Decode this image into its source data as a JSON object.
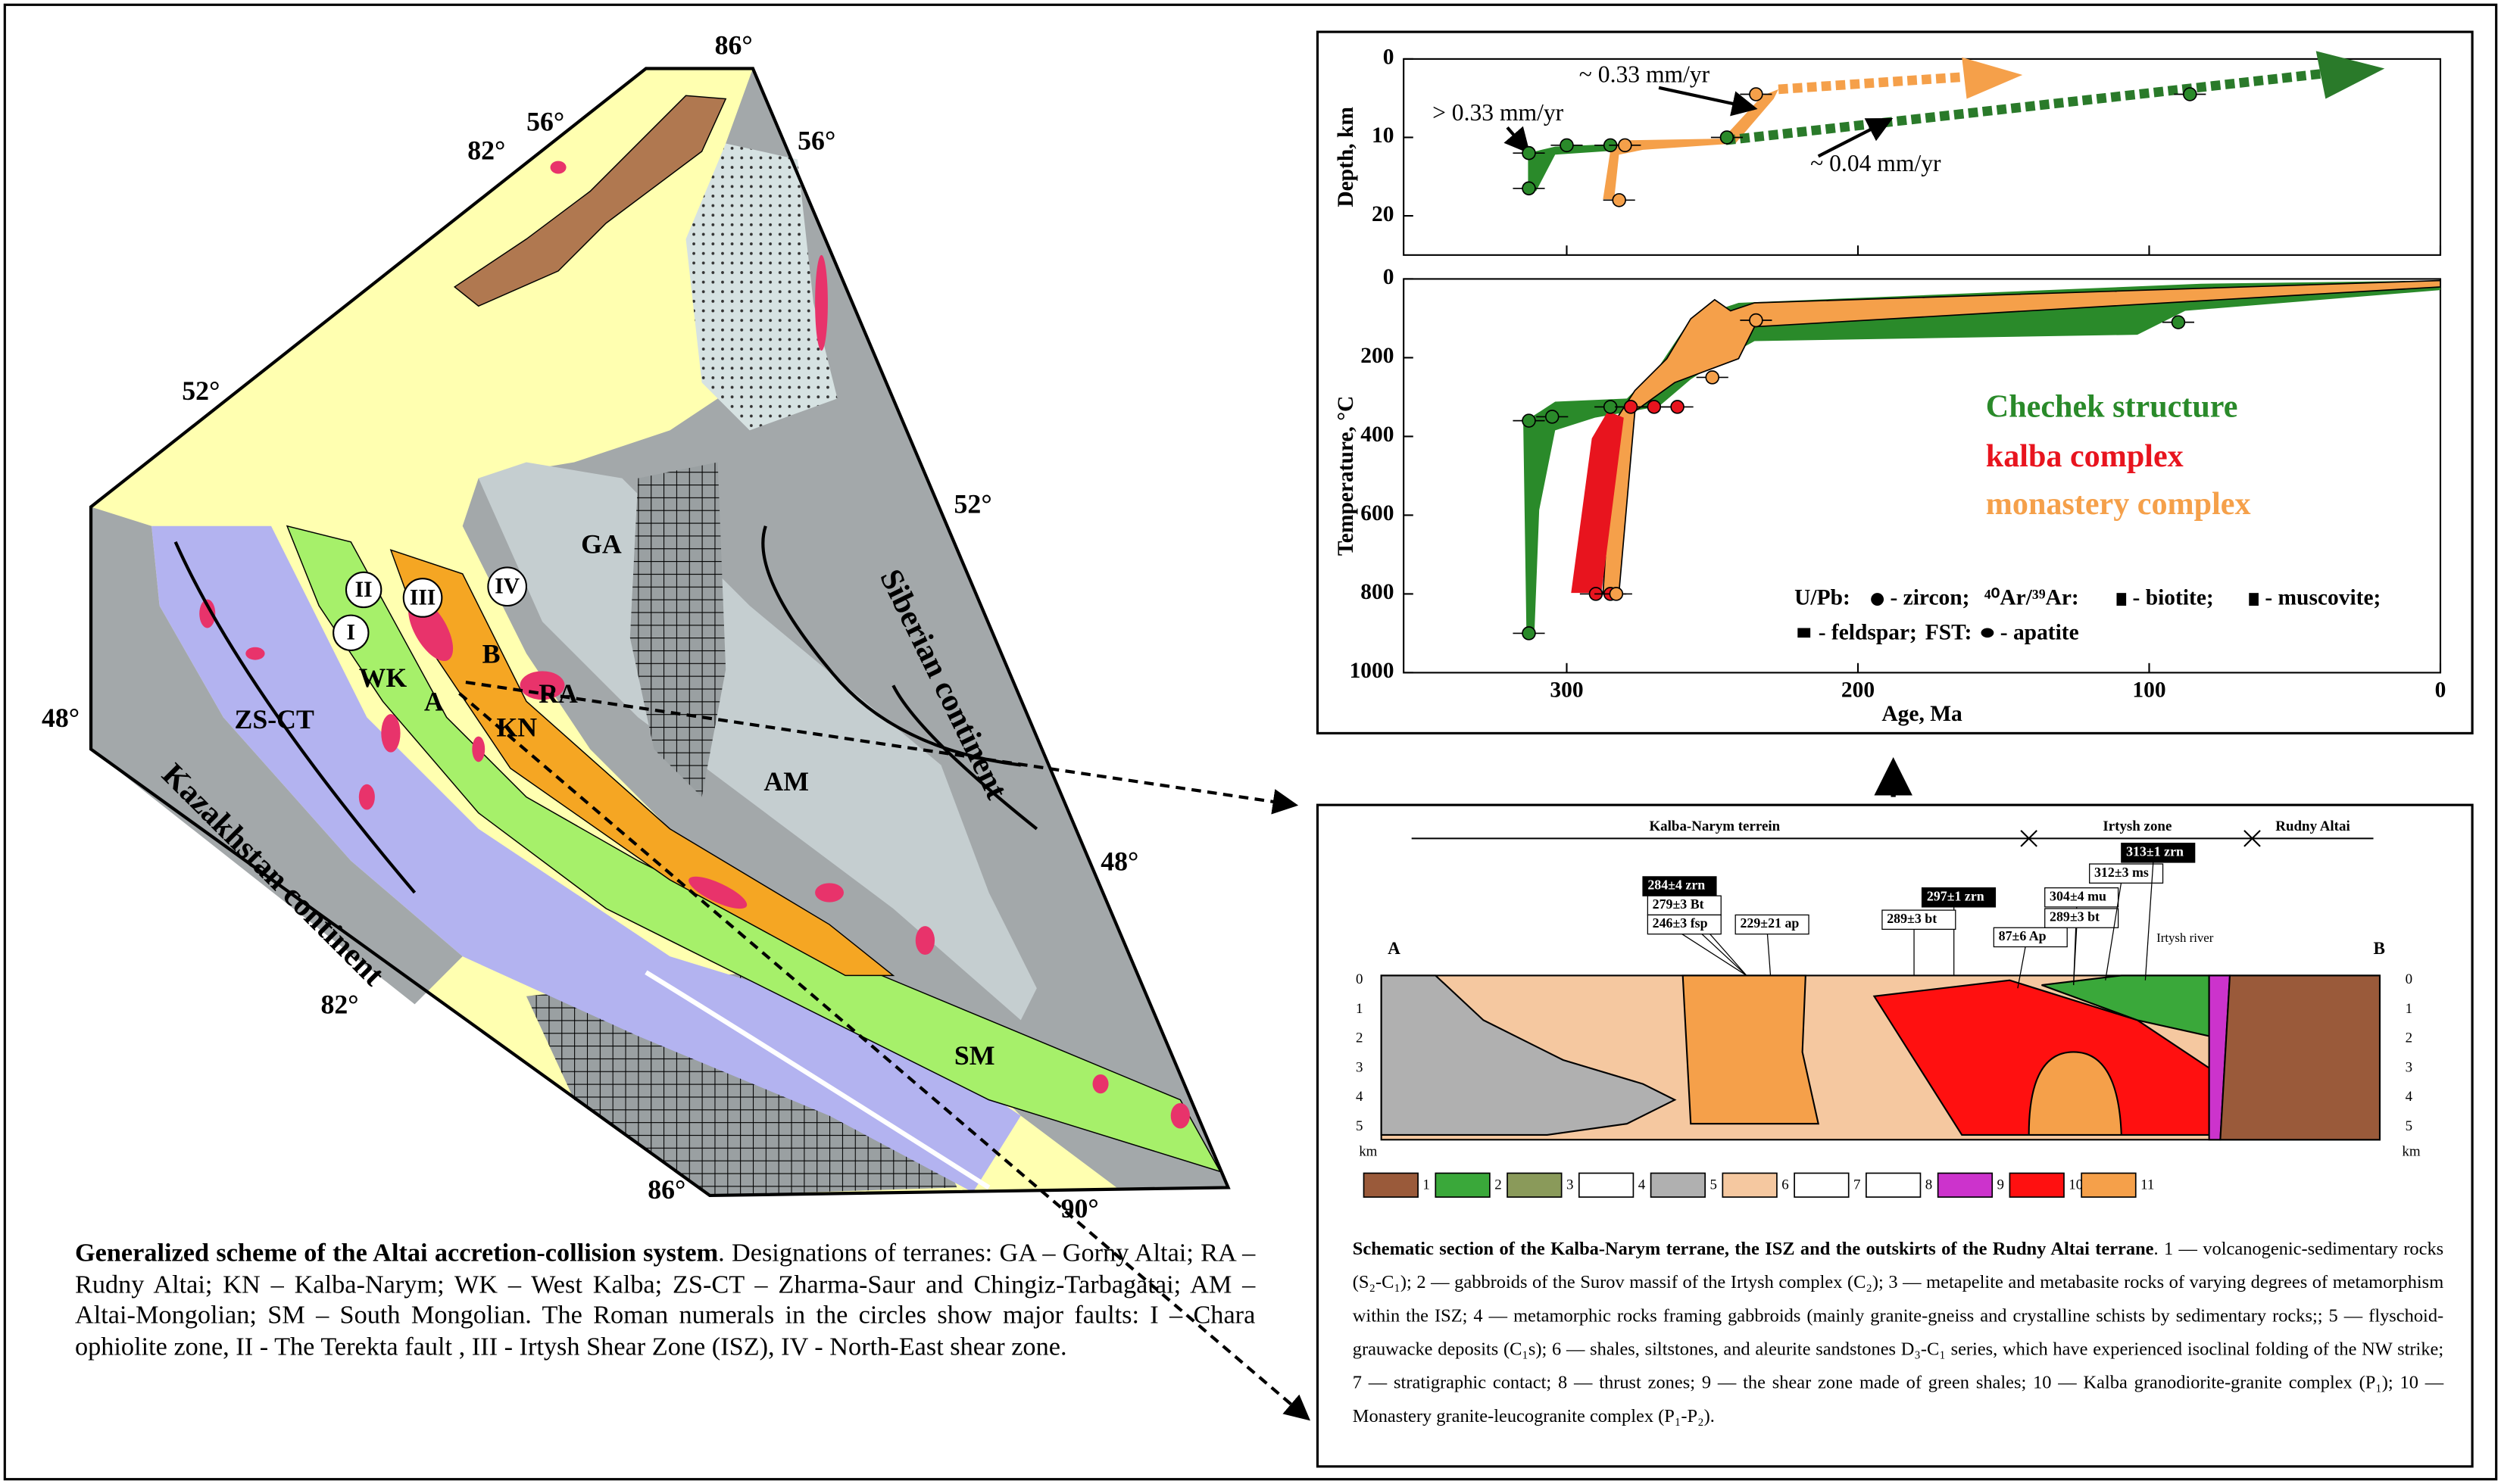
{
  "map": {
    "coords": [
      "86°",
      "56°",
      "82°",
      "56°",
      "52°",
      "52°",
      "48°",
      "48°",
      "82°",
      "86°",
      "90°"
    ],
    "terranes": [
      "GA",
      "RA",
      "KN",
      "WK",
      "ZS-CT",
      "AM",
      "SM"
    ],
    "points": [
      "A",
      "B"
    ],
    "faults": [
      "I",
      "II",
      "III",
      "IV"
    ],
    "continents": [
      "Siberian continent",
      "Kazakhstan continent"
    ]
  },
  "map_caption": {
    "title": "Generalized scheme of the Altai accretion-collision system",
    "text": ". Designations of terranes: GA – Gorny Altai; RA – Rudny Altai; KN – Kalba-Narym; WK – West Kalba; ZS-CT – Zharma-Saur and Chingiz-Tarbagatai; AM – Altai-Mongolian; SM – South Mongolian. The Roman numerals in the circles show major faults: I – Chara ophiolite zone, II - The Terekta fault , III - Irtysh Shear Zone (ISZ), IV - North-East shear zone."
  },
  "chart_data": [
    {
      "type": "scatter",
      "y_label": "Depth, km",
      "xlim": [
        356,
        0
      ],
      "xticks": [
        300,
        200,
        100,
        0
      ],
      "ylim": [
        0,
        25
      ],
      "yticks": [
        0,
        10,
        20
      ],
      "series": [
        {
          "color": "#2a8a2a",
          "x": [
            313,
            313,
            300,
            285,
            245,
            86
          ],
          "values": [
            16.5,
            12,
            11,
            11,
            10,
            4.5
          ]
        },
        {
          "color": "#f5a04a",
          "x": [
            282,
            280,
            235
          ],
          "values": [
            18,
            11,
            4.5
          ]
        }
      ],
      "annotations": [
        "> 0.33 mm/yr",
        "~ 0.33 mm/yr",
        "~ 0.04 mm/yr"
      ]
    },
    {
      "type": "scatter",
      "x_label": "Age, Ma",
      "y_label": "Temperature, °C",
      "xlim": [
        356,
        0
      ],
      "xticks": [
        300,
        200,
        100,
        0
      ],
      "ylim": [
        0,
        1000
      ],
      "yticks": [
        0,
        200,
        400,
        600,
        800,
        1000
      ],
      "series": [
        {
          "name": "Chechek structure",
          "color": "#2a8a2a",
          "x": [
            313,
            313,
            305,
            285,
            90
          ],
          "values": [
            900,
            360,
            350,
            325,
            110
          ]
        },
        {
          "name": "kalba complex",
          "color": "#e8141e",
          "x": [
            290,
            285,
            278,
            270,
            262
          ],
          "values": [
            800,
            800,
            325,
            325,
            325
          ]
        },
        {
          "name": "monastery complex",
          "color": "#f5a04a",
          "x": [
            283,
            250,
            235
          ],
          "values": [
            800,
            250,
            105
          ]
        }
      ],
      "symbol_legend": [
        "U/Pb:",
        "- zircon;",
        "⁴⁰Ar/³⁹Ar:",
        "- biotite;",
        "- muscovite;",
        "- feldspar;",
        "FST:",
        "- apatite"
      ]
    }
  ],
  "section": {
    "header": [
      "Kalba-Narym terrein",
      "Irtysh zone",
      "Rudny Altai"
    ],
    "ends": [
      "A",
      "B"
    ],
    "depth_ticks": [
      0,
      1,
      2,
      3,
      4,
      5
    ],
    "unit": "km",
    "labels": [
      "284±4 zrn",
      "279±3 Bt",
      "246±3 fsp",
      "229±21 ap",
      "297±1 zrn",
      "289±3 bt",
      "87±6 Ap",
      "304±4 mu",
      "289±3 bt",
      "312±3 ms",
      "313±1 zrn"
    ],
    "river": "Irtysh river",
    "legend": [
      "1",
      "2",
      "3",
      "4",
      "5",
      "6",
      "7",
      "8",
      "9",
      "10",
      "11"
    ]
  },
  "section_caption": {
    "title": "Schematic section of the Kalba-Narym terrane, the ISZ and the outskirts of the Rudny Altai terrane",
    "text": ". 1 — volcanogenic-sedimentary rocks (S₂-C₁); 2 — gabbroids of the Surov massif of the Irtysh complex (C₂); 3 — metapelite and metabasite rocks of varying degrees of metamorphism within the ISZ; 4 — metamorphic rocks framing gabbroids (mainly granite-gneiss and crystalline schists by sedimentary rocks;; 5 — flyschoid-grauwacke deposits (C₁s); 6 — shales, siltstones, and aleurite sandstones D₃-C₁ series, which have experienced isoclinal folding of the NW strike; 7 — stratigraphic contact; 8 — thrust zones; 9 — the shear zone made of green shales; 10 — Kalba granodiorite-granite complex (P₁); 10 — Monastery granite-leucogranite complex (P₁-P₂)."
  }
}
